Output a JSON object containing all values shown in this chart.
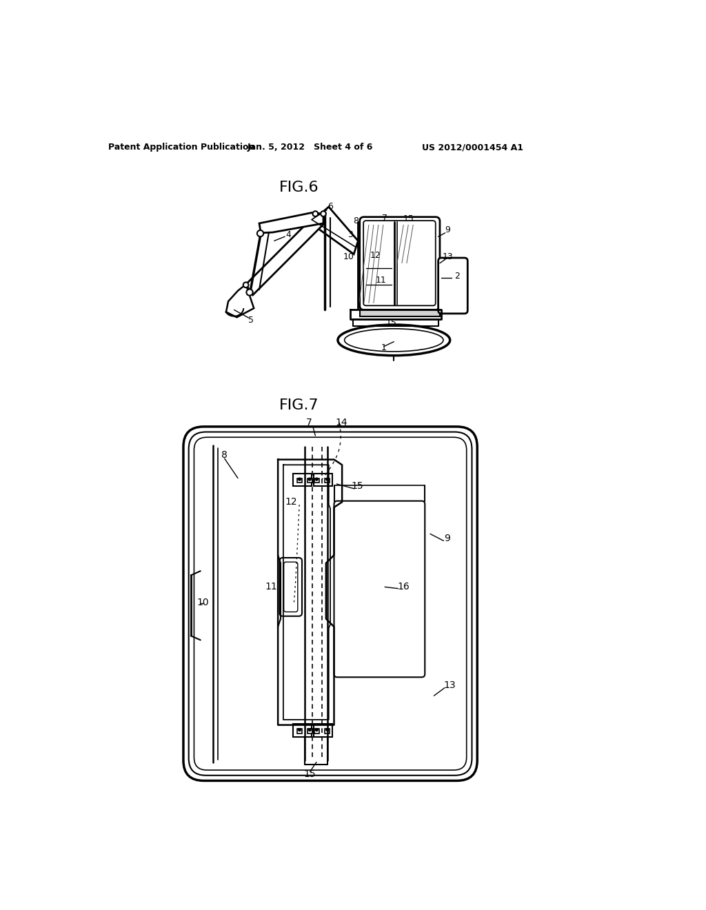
{
  "background_color": "#ffffff",
  "header_left": "Patent Application Publication",
  "header_center": "Jan. 5, 2012   Sheet 4 of 6",
  "header_right": "US 2012/0001454 A1",
  "fig6_title": "FIG.6",
  "fig7_title": "FIG.7",
  "line_color": "#000000",
  "font_size_header": 9,
  "font_size_fig": 15
}
